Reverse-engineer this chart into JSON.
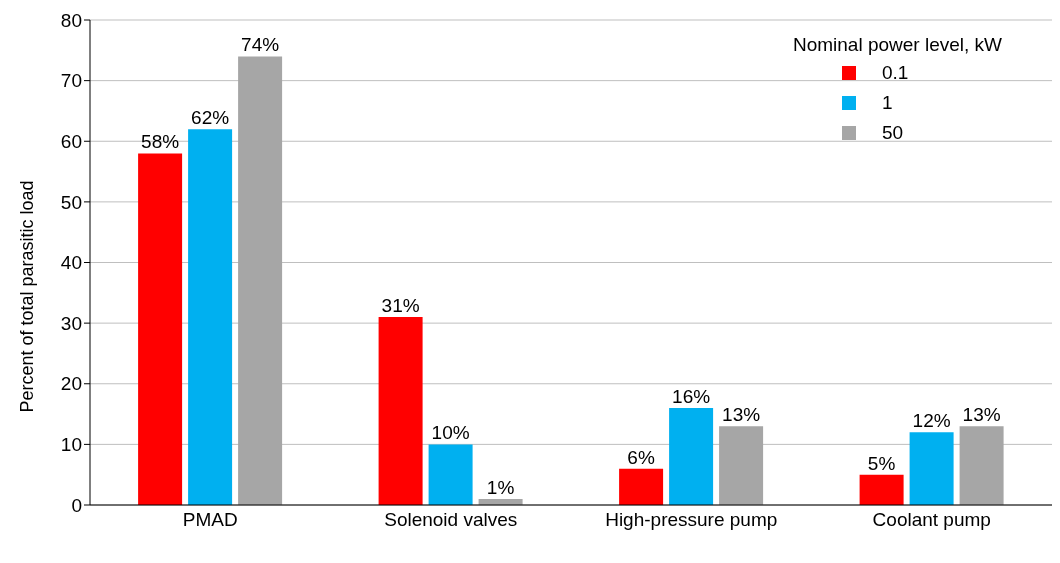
{
  "chart_data": {
    "type": "bar",
    "ylabel": "Percent of total parasitic load",
    "legend_title": "Nominal power level, kW",
    "categories": [
      "PMAD",
      "Solenoid valves",
      "High-pressure pump",
      "Coolant pump"
    ],
    "series": [
      {
        "name": "0.1",
        "color": "#ff0000",
        "values": [
          58,
          31,
          6,
          5
        ],
        "value_labels": [
          "58%",
          "31%",
          "6%",
          "5%"
        ]
      },
      {
        "name": "1",
        "color": "#00b0f0",
        "values": [
          62,
          10,
          16,
          12
        ],
        "value_labels": [
          "62%",
          "10%",
          "16%",
          "12%"
        ]
      },
      {
        "name": "50",
        "color": "#a6a6a6",
        "values": [
          74,
          1,
          13,
          13
        ],
        "value_labels": [
          "74%",
          "1%",
          "13%",
          "13%"
        ]
      }
    ],
    "ylim": [
      0,
      80
    ],
    "yticks": [
      0,
      10,
      20,
      30,
      40,
      50,
      60,
      70,
      80
    ],
    "grid": "y",
    "legend": "top right"
  }
}
